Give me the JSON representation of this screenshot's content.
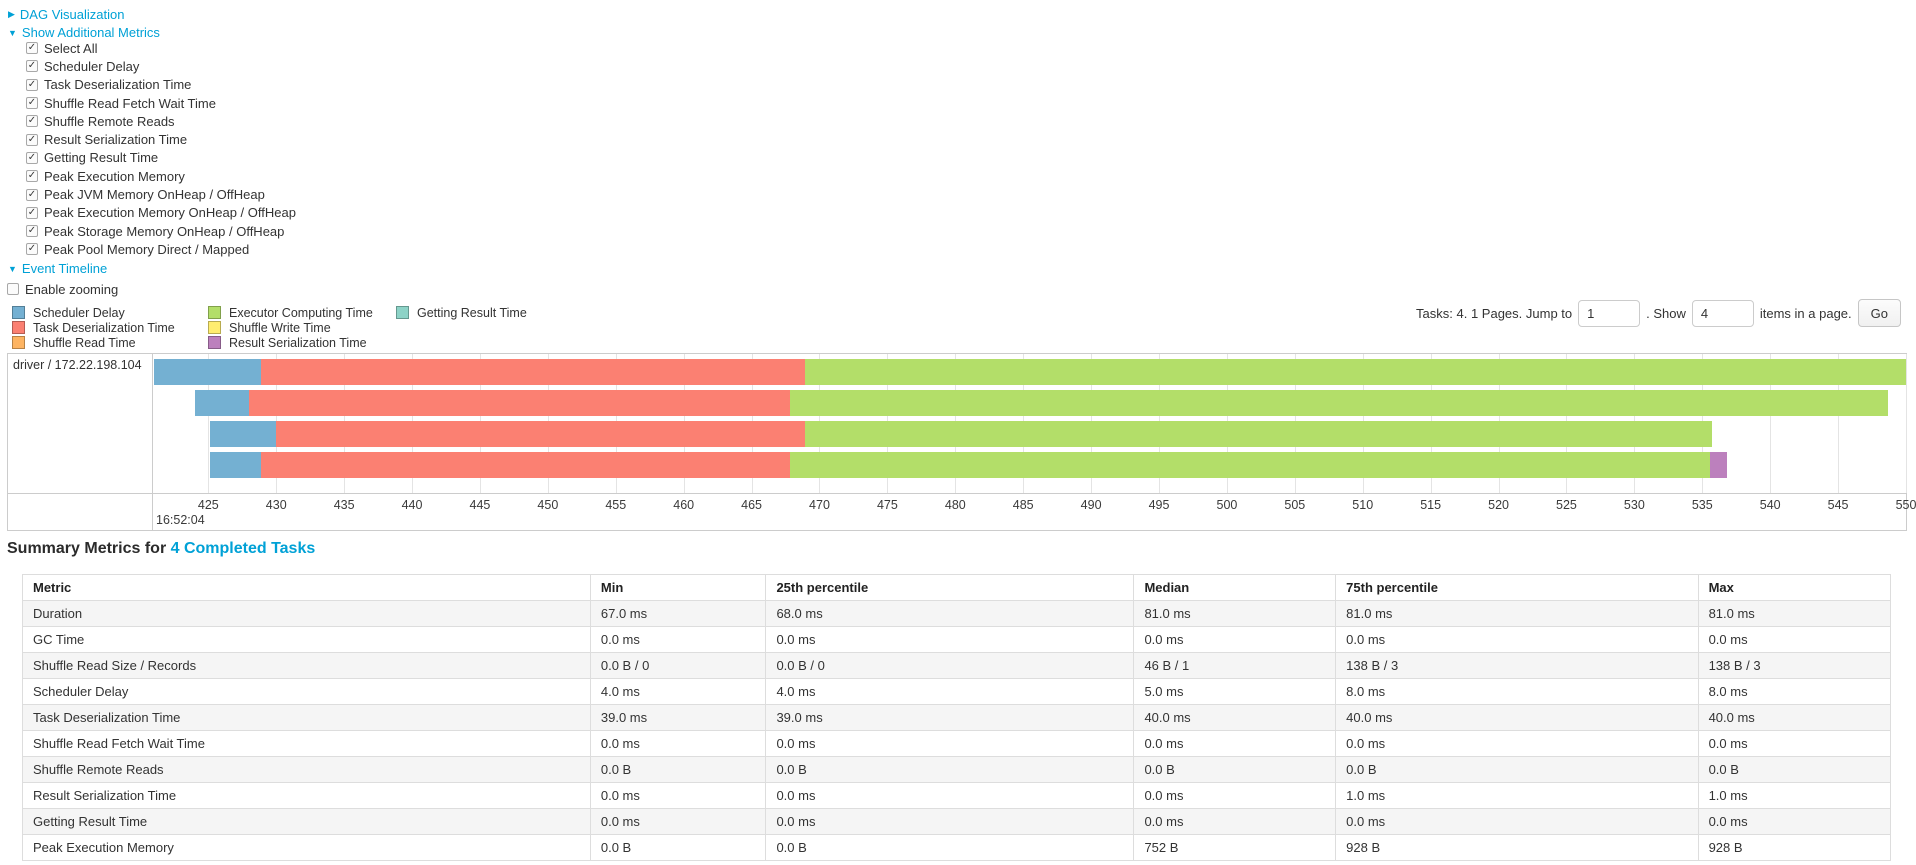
{
  "colors": {
    "link": "#00a1d6",
    "scheduler_delay": "#74b0d2",
    "task_deserialization": "#fb8072",
    "shuffle_read": "#fdb462",
    "executor_computing": "#b3de69",
    "shuffle_write": "#ffed6f",
    "result_serialization": "#bc80bd",
    "getting_result": "#8dd3c7"
  },
  "controls": {
    "dag": {
      "label": "DAG Visualization",
      "state": "collapsed"
    },
    "metrics": {
      "label": "Show Additional Metrics",
      "state": "expanded",
      "items": [
        {
          "label": "Select All",
          "checked": true
        },
        {
          "label": "Scheduler Delay",
          "checked": true
        },
        {
          "label": "Task Deserialization Time",
          "checked": true
        },
        {
          "label": "Shuffle Read Fetch Wait Time",
          "checked": true
        },
        {
          "label": "Shuffle Remote Reads",
          "checked": true
        },
        {
          "label": "Result Serialization Time",
          "checked": true
        },
        {
          "label": "Getting Result Time",
          "checked": true
        },
        {
          "label": "Peak Execution Memory",
          "checked": true
        },
        {
          "label": "Peak JVM Memory OnHeap / OffHeap",
          "checked": true
        },
        {
          "label": "Peak Execution Memory OnHeap / OffHeap",
          "checked": true
        },
        {
          "label": "Peak Storage Memory OnHeap / OffHeap",
          "checked": true
        },
        {
          "label": "Peak Pool Memory Direct / Mapped",
          "checked": true
        }
      ]
    },
    "timeline": {
      "label": "Event Timeline",
      "state": "expanded"
    },
    "enable_zooming": {
      "label": "Enable zooming",
      "checked": false
    }
  },
  "legend": {
    "columns": [
      [
        {
          "label": "Scheduler Delay",
          "color": "#74b0d2"
        },
        {
          "label": "Task Deserialization Time",
          "color": "#fb8072"
        },
        {
          "label": "Shuffle Read Time",
          "color": "#fdb462"
        }
      ],
      [
        {
          "label": "Executor Computing Time",
          "color": "#b3de69"
        },
        {
          "label": "Shuffle Write Time",
          "color": "#ffed6f"
        },
        {
          "label": "Result Serialization Time",
          "color": "#bc80bd"
        }
      ],
      [
        {
          "label": "Getting Result Time",
          "color": "#8dd3c7"
        }
      ]
    ]
  },
  "pagination": {
    "info": "Tasks: 4. 1 Pages. Jump to",
    "jump_value": "1",
    "show_label": ". Show",
    "show_value": "4",
    "suffix": "items in a page.",
    "go_label": "Go"
  },
  "chart_data": {
    "type": "timeline",
    "executor_label": "driver / 172.22.198.104",
    "time_origin_label": "16:52:04",
    "x_axis": {
      "min": 421,
      "max": 550,
      "tick_start": 425,
      "tick_step": 5,
      "unit": "ms after 16:52:04"
    },
    "ticks": [
      425,
      430,
      435,
      440,
      445,
      450,
      455,
      460,
      465,
      470,
      475,
      480,
      485,
      490,
      495,
      500,
      505,
      510,
      515,
      520,
      525,
      530,
      535,
      540,
      545,
      550
    ],
    "segment_colors": {
      "scheduler-delay": "#74b0d2",
      "task-deserialization": "#fb8072",
      "executor-computing": "#b3de69",
      "result-serialization": "#bc80bd"
    },
    "tasks": [
      {
        "segments": [
          {
            "type": "scheduler-delay",
            "start": 421.0,
            "end": 428.9
          },
          {
            "type": "task-deserialization",
            "start": 428.9,
            "end": 468.9
          },
          {
            "type": "executor-computing",
            "start": 468.9,
            "end": 550.0
          }
        ]
      },
      {
        "segments": [
          {
            "type": "scheduler-delay",
            "start": 424.0,
            "end": 428.0
          },
          {
            "type": "task-deserialization",
            "start": 428.0,
            "end": 467.8
          },
          {
            "type": "executor-computing",
            "start": 467.8,
            "end": 548.7
          }
        ]
      },
      {
        "segments": [
          {
            "type": "scheduler-delay",
            "start": 425.1,
            "end": 430.0
          },
          {
            "type": "task-deserialization",
            "start": 430.0,
            "end": 468.9
          },
          {
            "type": "executor-computing",
            "start": 468.9,
            "end": 535.7
          }
        ]
      },
      {
        "segments": [
          {
            "type": "scheduler-delay",
            "start": 425.1,
            "end": 428.9
          },
          {
            "type": "task-deserialization",
            "start": 428.9,
            "end": 467.8
          },
          {
            "type": "executor-computing",
            "start": 467.8,
            "end": 535.6
          },
          {
            "type": "result-serialization",
            "start": 535.6,
            "end": 536.8
          }
        ]
      }
    ]
  },
  "summary": {
    "title_prefix": "Summary Metrics for ",
    "title_link": "4 Completed Tasks"
  },
  "table": {
    "headers": [
      "Metric",
      "Min",
      "25th percentile",
      "Median",
      "75th percentile",
      "Max"
    ],
    "rows": [
      [
        "Duration",
        "67.0 ms",
        "68.0 ms",
        "81.0 ms",
        "81.0 ms",
        "81.0 ms"
      ],
      [
        "GC Time",
        "0.0 ms",
        "0.0 ms",
        "0.0 ms",
        "0.0 ms",
        "0.0 ms"
      ],
      [
        "Shuffle Read Size / Records",
        "0.0 B / 0",
        "0.0 B / 0",
        "46 B / 1",
        "138 B / 3",
        "138 B / 3"
      ],
      [
        "Scheduler Delay",
        "4.0 ms",
        "4.0 ms",
        "5.0 ms",
        "8.0 ms",
        "8.0 ms"
      ],
      [
        "Task Deserialization Time",
        "39.0 ms",
        "39.0 ms",
        "40.0 ms",
        "40.0 ms",
        "40.0 ms"
      ],
      [
        "Shuffle Read Fetch Wait Time",
        "0.0 ms",
        "0.0 ms",
        "0.0 ms",
        "0.0 ms",
        "0.0 ms"
      ],
      [
        "Shuffle Remote Reads",
        "0.0 B",
        "0.0 B",
        "0.0 B",
        "0.0 B",
        "0.0 B"
      ],
      [
        "Result Serialization Time",
        "0.0 ms",
        "0.0 ms",
        "0.0 ms",
        "1.0 ms",
        "1.0 ms"
      ],
      [
        "Getting Result Time",
        "0.0 ms",
        "0.0 ms",
        "0.0 ms",
        "0.0 ms",
        "0.0 ms"
      ],
      [
        "Peak Execution Memory",
        "0.0 B",
        "0.0 B",
        "752 B",
        "928 B",
        "928 B"
      ]
    ]
  }
}
